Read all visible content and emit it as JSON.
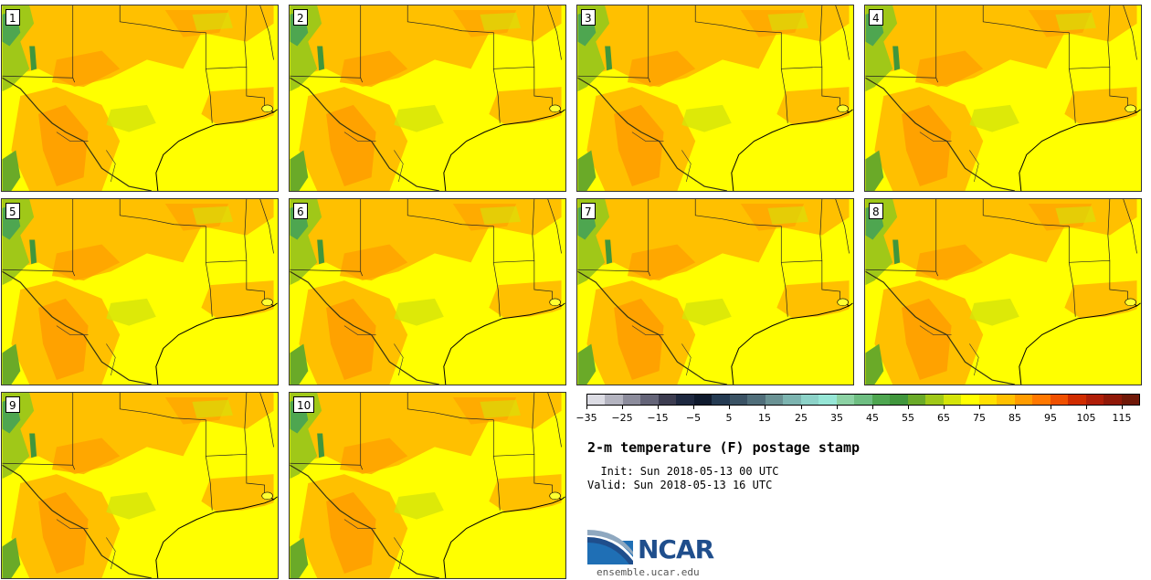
{
  "panels": [
    {
      "label": "1"
    },
    {
      "label": "2"
    },
    {
      "label": "3"
    },
    {
      "label": "4"
    },
    {
      "label": "5"
    },
    {
      "label": "6"
    },
    {
      "label": "7"
    },
    {
      "label": "8"
    },
    {
      "label": "9"
    },
    {
      "label": "10"
    }
  ],
  "colorbar": {
    "colors": [
      "#dcdce4",
      "#b4b4c0",
      "#8c8c9c",
      "#646478",
      "#3c3c50",
      "#1e2840",
      "#0f1a2e",
      "#243a52",
      "#3a5264",
      "#506e7a",
      "#6a9294",
      "#7cb4b0",
      "#8cd2c8",
      "#96e6d6",
      "#8cd2a4",
      "#6ebe82",
      "#4ea650",
      "#40963c",
      "#6aaa28",
      "#a0c818",
      "#d4e40a",
      "#ffff00",
      "#ffe000",
      "#ffc000",
      "#ff9c00",
      "#ff7800",
      "#f05000",
      "#d02c00",
      "#b01e08",
      "#901808",
      "#701808"
    ],
    "ticks": [
      "-35",
      "-25",
      "-15",
      "-5",
      "5",
      "15",
      "25",
      "35",
      "45",
      "55",
      "65",
      "75",
      "85",
      "95",
      "105",
      "115"
    ]
  },
  "title": "2-m temperature (F) postage stamp",
  "init": "  Init: Sun 2018-05-13 00 UTC",
  "valid": "Valid: Sun 2018-05-13 16 UTC",
  "logo": {
    "text": "NCAR",
    "url": "ensemble.ucar.edu",
    "accent": "#1f4e8c"
  }
}
